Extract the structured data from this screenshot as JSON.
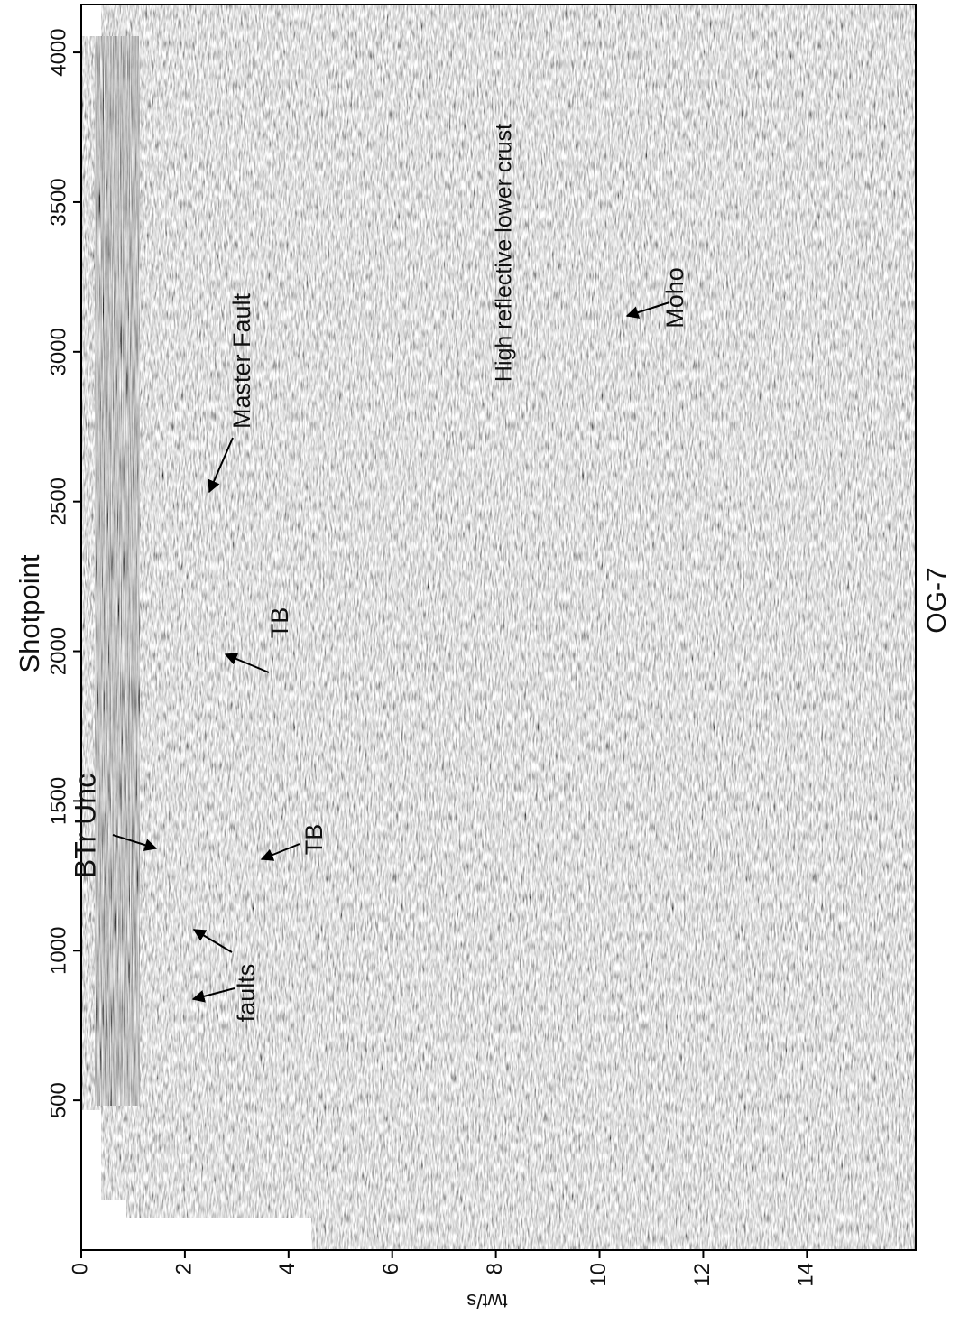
{
  "chart_data": {
    "type": "seismic",
    "xlabel": "Shotpoint",
    "ylabel": "twt/s",
    "caption": "OG-7",
    "xlim": [
      0,
      4160
    ],
    "xticks": [
      500,
      1000,
      1500,
      2000,
      2500,
      3000,
      3500,
      4000
    ],
    "ylim": [
      0,
      16.1
    ],
    "yticks": [
      0,
      2,
      4,
      6,
      8,
      10,
      12,
      14
    ],
    "annotations": [
      "Master Fault",
      "TB",
      "BTr Unc",
      "TB",
      "faults",
      "High reflective lower crust",
      "Moho"
    ]
  }
}
